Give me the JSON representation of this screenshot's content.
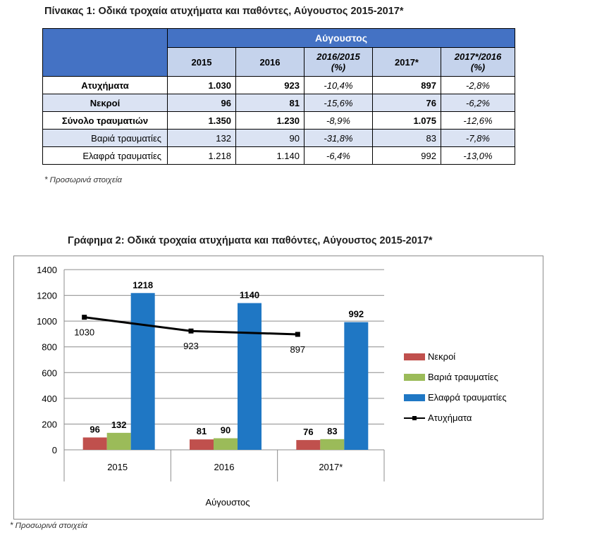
{
  "table1": {
    "title": "Πίνακας 1: Οδικά τροχαία ατυχήματα και παθόντες, Αύγουστος 2015-2017*",
    "group_header": "Αύγουστος",
    "columns": [
      "2015",
      "2016",
      "2016/2015 (%)",
      "2017*",
      "2017*/2016 (%)"
    ],
    "rows": [
      {
        "label": "Ατυχήματα",
        "values": [
          "1.030",
          "923",
          "-10,4%",
          "897",
          "-2,8%"
        ]
      },
      {
        "label": "Νεκροί",
        "values": [
          "96",
          "81",
          "-15,6%",
          "76",
          "-6,2%"
        ]
      },
      {
        "label": "Σύνολο τραυματιών",
        "values": [
          "1.350",
          "1.230",
          "-8,9%",
          "1.075",
          "-12,6%"
        ]
      },
      {
        "label": "Βαριά τραυματίες",
        "values": [
          "132",
          "90",
          "-31,8%",
          "83",
          "-7,8%"
        ]
      },
      {
        "label": "Ελαφρά τραυματίες",
        "values": [
          "1.218",
          "1.140",
          "-6,4%",
          "992",
          "-13,0%"
        ]
      }
    ],
    "note": "* Προσωρινά στοιχεία"
  },
  "chart_data": {
    "type": "bar",
    "title": "Γράφημα 2: Οδικά τροχαία ατυχήματα και παθόντες, Αύγουστος 2015-2017*",
    "xlabel": "Αύγουστος",
    "ylabel": "",
    "categories": [
      "2015",
      "2016",
      "2017*"
    ],
    "ylim": [
      0,
      1400
    ],
    "yticks": [
      0,
      200,
      400,
      600,
      800,
      1000,
      1200,
      1400
    ],
    "grid": true,
    "legend_position": "right",
    "series": [
      {
        "name": "Νεκροί",
        "kind": "bar",
        "color": "#c0504d",
        "values": [
          96,
          81,
          76
        ]
      },
      {
        "name": "Βαριά τραυματίες",
        "kind": "bar",
        "color": "#9bbb59",
        "values": [
          132,
          90,
          83
        ]
      },
      {
        "name": "Ελαφρά τραυματίες",
        "kind": "bar",
        "color": "#1f77c4",
        "values": [
          1218,
          1140,
          992
        ]
      },
      {
        "name": "Ατυχήματα",
        "kind": "line",
        "color": "#000000",
        "values": [
          1030,
          923,
          897
        ]
      }
    ]
  },
  "note2": "* Προσωρινά στοιχεία"
}
